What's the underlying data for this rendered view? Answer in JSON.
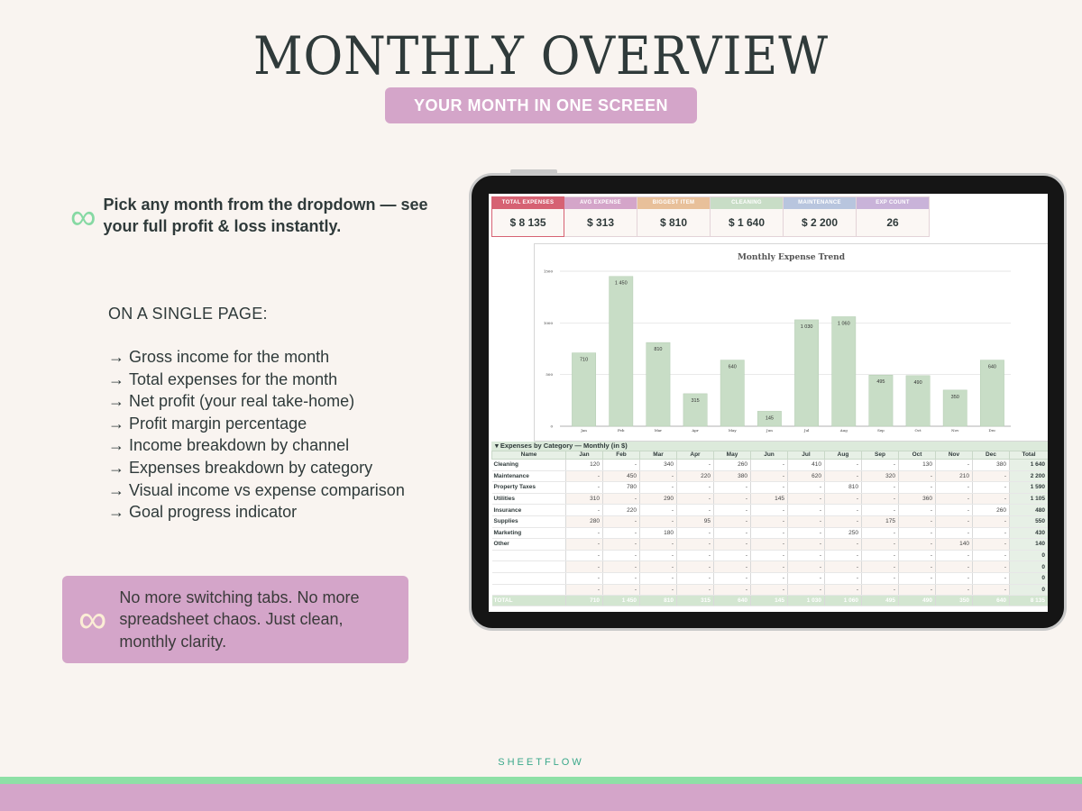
{
  "page": {
    "title": "MONTHLY OVERVIEW",
    "subtitle": "YOUR MONTH IN ONE SCREEN",
    "intro": "Pick any month from the dropdown — see your full profit & loss instantly.",
    "section_heading": "ON A SINGLE PAGE:",
    "arrow": "→",
    "features": [
      "Gross income for the month",
      "Total expenses for the month",
      "Net profit (your real take-home)",
      "Profit margin percentage",
      "Income breakdown by channel",
      "Expenses breakdown by category",
      "Visual income vs expense comparison",
      "Goal progress indicator"
    ],
    "callout": "No more switching tabs. No more spreadsheet chaos. Just clean, monthly clarity.",
    "brand": "SHEETFLOW",
    "colors": {
      "background": "#f9f4f0",
      "pink": "#d4a5c9",
      "green": "#8ee0a6",
      "bar": "#c8ddc6"
    }
  },
  "kpis": [
    {
      "label": "TOTAL EXPENSES",
      "value": "$  8 135",
      "color": "#d66273"
    },
    {
      "label": "AVG EXPENSE",
      "value": "$  313",
      "color": "#d4a5c9"
    },
    {
      "label": "BIGGEST ITEM",
      "value": "$  810",
      "color": "#e8c09a"
    },
    {
      "label": "CLEANING",
      "value": "$  1 640",
      "color": "#c8ddc6"
    },
    {
      "label": "MAINTENANCE",
      "value": "$  2 200",
      "color": "#b8c5de"
    },
    {
      "label": "EXP COUNT",
      "value": "26",
      "color": "#c9b3d9"
    }
  ],
  "chart_data": {
    "type": "bar",
    "title": "Monthly Expense Trend",
    "categories": [
      "Jan",
      "Feb",
      "Mar",
      "Apr",
      "May",
      "Jun",
      "Jul",
      "Aug",
      "Sep",
      "Oct",
      "Nov",
      "Dec"
    ],
    "values": [
      710,
      1450,
      810,
      315,
      640,
      145,
      1030,
      1060,
      495,
      490,
      350,
      640
    ],
    "value_labels": [
      "710",
      "1 450",
      "810",
      "315",
      "640",
      "145",
      "1 030",
      "1 060",
      "495",
      "490",
      "350",
      "640"
    ],
    "yticks": [
      "0",
      "500",
      "1000",
      "1500"
    ],
    "ylim": [
      0,
      1500
    ],
    "grid": true
  },
  "table": {
    "title": "Expenses by Category — Monthly (in $)",
    "toggle": "▾",
    "headers": [
      "Name",
      "Jan",
      "Feb",
      "Mar",
      "Apr",
      "May",
      "Jun",
      "Jul",
      "Aug",
      "Sep",
      "Oct",
      "Nov",
      "Dec",
      "Total"
    ],
    "rows": [
      [
        "Cleaning",
        "120",
        "-",
        "340",
        "-",
        "260",
        "-",
        "410",
        "-",
        "-",
        "130",
        "-",
        "380",
        "1 640"
      ],
      [
        "Maintenance",
        "-",
        "450",
        "-",
        "220",
        "380",
        "-",
        "620",
        "-",
        "320",
        "-",
        "210",
        "-",
        "2 200"
      ],
      [
        "Property Taxes",
        "-",
        "780",
        "-",
        "-",
        "-",
        "-",
        "-",
        "810",
        "-",
        "-",
        "-",
        "-",
        "1 590"
      ],
      [
        "Utilities",
        "310",
        "-",
        "290",
        "-",
        "-",
        "145",
        "-",
        "-",
        "-",
        "360",
        "-",
        "-",
        "1 105"
      ],
      [
        "Insurance",
        "-",
        "220",
        "-",
        "-",
        "-",
        "-",
        "-",
        "-",
        "-",
        "-",
        "-",
        "260",
        "480"
      ],
      [
        "Supplies",
        "280",
        "-",
        "-",
        "95",
        "-",
        "-",
        "-",
        "-",
        "175",
        "-",
        "-",
        "-",
        "550"
      ],
      [
        "Marketing",
        "-",
        "-",
        "180",
        "-",
        "-",
        "-",
        "-",
        "250",
        "-",
        "-",
        "-",
        "-",
        "430"
      ],
      [
        "Other",
        "-",
        "-",
        "-",
        "-",
        "-",
        "-",
        "-",
        "-",
        "-",
        "-",
        "140",
        "-",
        "140"
      ],
      [
        "",
        "-",
        "-",
        "-",
        "-",
        "-",
        "-",
        "-",
        "-",
        "-",
        "-",
        "-",
        "-",
        "0"
      ],
      [
        "",
        "-",
        "-",
        "-",
        "-",
        "-",
        "-",
        "-",
        "-",
        "-",
        "-",
        "-",
        "-",
        "0"
      ],
      [
        "",
        "-",
        "-",
        "-",
        "-",
        "-",
        "-",
        "-",
        "-",
        "-",
        "-",
        "-",
        "-",
        "0"
      ],
      [
        "",
        "-",
        "-",
        "-",
        "-",
        "-",
        "-",
        "-",
        "-",
        "-",
        "-",
        "-",
        "-",
        "0"
      ]
    ],
    "total_row": [
      "TOTAL",
      "710",
      "1 450",
      "810",
      "315",
      "640",
      "145",
      "1 030",
      "1 060",
      "495",
      "490",
      "350",
      "640",
      "8 135"
    ]
  }
}
